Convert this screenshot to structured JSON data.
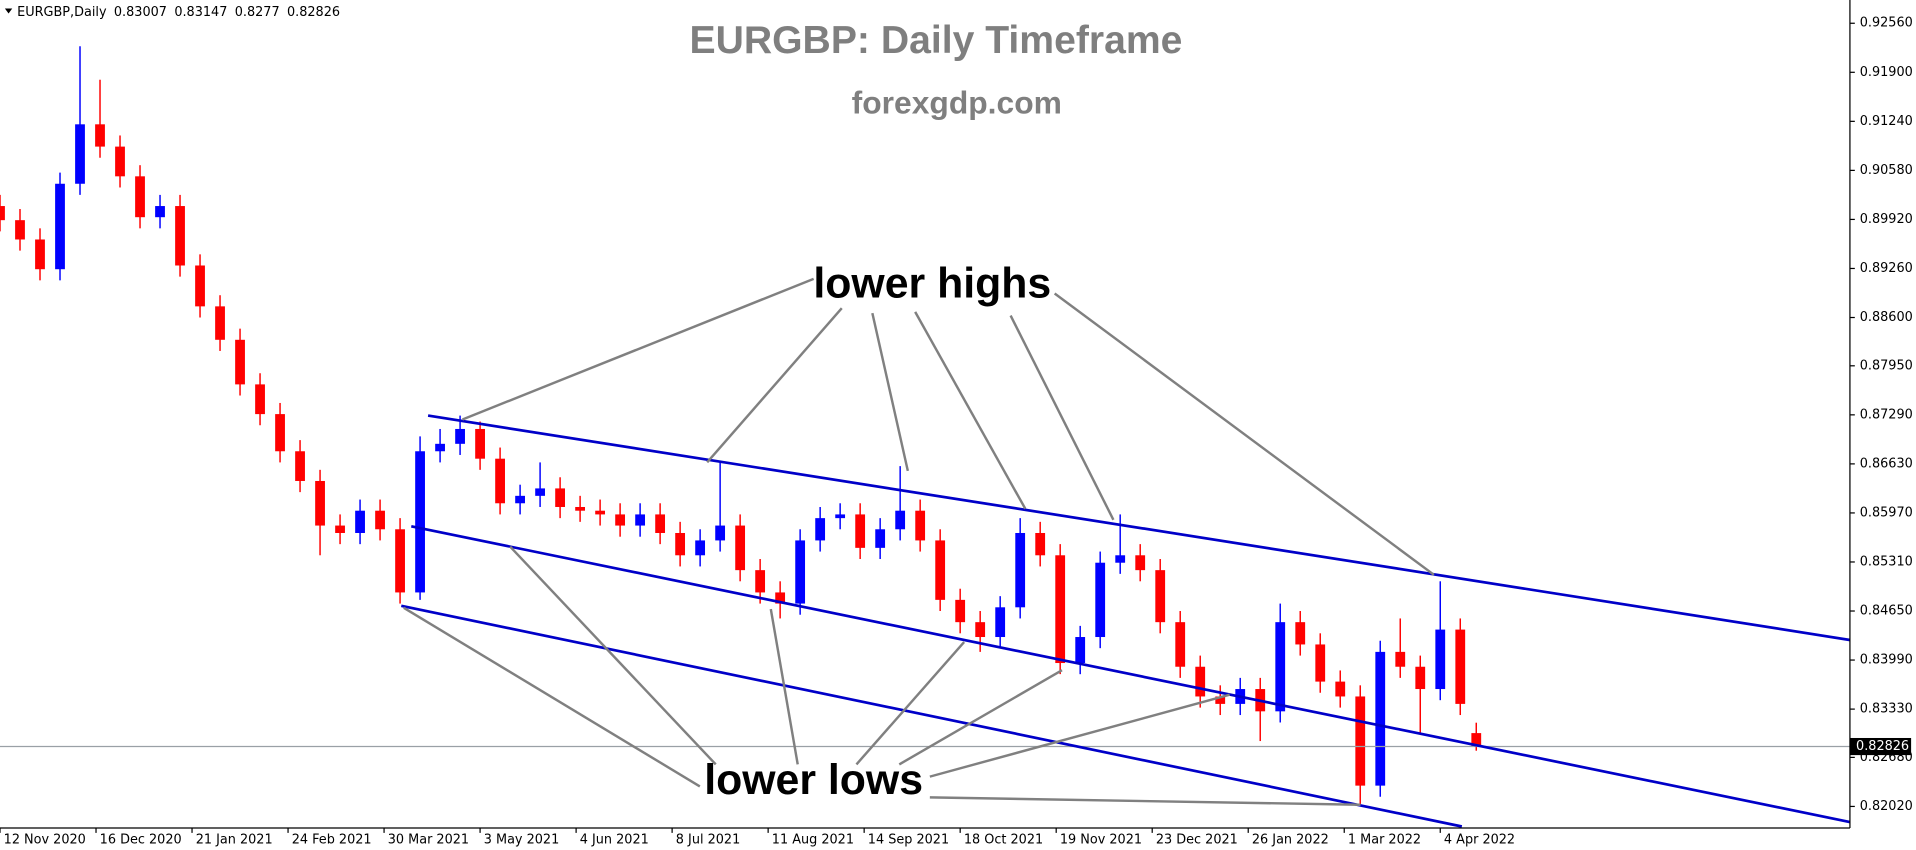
{
  "chart_data": {
    "type": "candlestick",
    "symbol": "EURGBP,Daily",
    "title": "EURGBP: Daily Timeframe",
    "subtitle": "forexgdp.com",
    "annotations": [
      "lower highs",
      "lower lows"
    ],
    "up_color": "#0000ff",
    "down_color": "#ff0000",
    "channel_color": "#0000c8",
    "xlim": [
      0,
      462.4
    ],
    "ylim": [
      0.8173,
      0.92873
    ],
    "xticks": [
      {
        "value": 0,
        "label": "12 Nov 2020"
      },
      {
        "value": 24,
        "label": "16 Dec 2020"
      },
      {
        "value": 48,
        "label": "21 Jan 2021"
      },
      {
        "value": 72,
        "label": "24 Feb 2021"
      },
      {
        "value": 96,
        "label": "30 Mar 2021"
      },
      {
        "value": 120,
        "label": "3 May 2021"
      },
      {
        "value": 144,
        "label": "4 Jun 2021"
      },
      {
        "value": 168,
        "label": "8 Jul 2021"
      },
      {
        "value": 192,
        "label": "11 Aug 2021"
      },
      {
        "value": 216,
        "label": "14 Sep 2021"
      },
      {
        "value": 240,
        "label": "18 Oct 2021"
      },
      {
        "value": 264,
        "label": "19 Nov 2021"
      },
      {
        "value": 288,
        "label": "23 Dec 2021"
      },
      {
        "value": 312,
        "label": "26 Jan 2022"
      },
      {
        "value": 336,
        "label": "1 Mar 2022"
      },
      {
        "value": 360,
        "label": "4 Apr 2022"
      }
    ],
    "yticks": [
      {
        "value": 0.9256,
        "label": "0.92560"
      },
      {
        "value": 0.919,
        "label": "0.91900"
      },
      {
        "value": 0.9124,
        "label": "0.91240"
      },
      {
        "value": 0.9058,
        "label": "0.90580"
      },
      {
        "value": 0.8992,
        "label": "0.89920"
      },
      {
        "value": 0.8926,
        "label": "0.89260"
      },
      {
        "value": 0.886,
        "label": "0.88600"
      },
      {
        "value": 0.8795,
        "label": "0.87950"
      },
      {
        "value": 0.8729,
        "label": "0.87290"
      },
      {
        "value": 0.8663,
        "label": "0.86630"
      },
      {
        "value": 0.8597,
        "label": "0.85970"
      },
      {
        "value": 0.8531,
        "label": "0.85310"
      },
      {
        "value": 0.8465,
        "label": "0.84650"
      },
      {
        "value": 0.8399,
        "label": "0.83990"
      },
      {
        "value": 0.8333,
        "label": "0.83330"
      },
      {
        "value": 0.8268,
        "label": "0.82680"
      },
      {
        "value": 0.8202,
        "label": "0.82020"
      }
    ],
    "x": [
      0,
      5,
      10,
      15,
      20,
      25,
      30,
      35,
      40,
      45,
      50,
      55,
      60,
      65,
      70,
      75,
      80,
      85,
      90,
      95,
      100,
      105,
      110,
      115,
      120,
      125,
      130,
      135,
      140,
      145,
      150,
      155,
      160,
      165,
      170,
      175,
      180,
      185,
      190,
      195,
      200,
      205,
      210,
      215,
      220,
      225,
      230,
      235,
      240,
      245,
      250,
      255,
      260,
      265,
      270,
      275,
      280,
      285,
      290,
      295,
      300,
      305,
      310,
      315,
      320,
      325,
      330,
      335,
      340,
      345,
      350,
      355,
      360,
      365,
      369
    ],
    "open": [
      0.901,
      0.8991,
      0.8965,
      0.8925,
      0.904,
      0.912,
      0.909,
      0.905,
      0.8995,
      0.901,
      0.893,
      0.8875,
      0.883,
      0.877,
      0.873,
      0.868,
      0.864,
      0.858,
      0.857,
      0.86,
      0.8575,
      0.849,
      0.868,
      0.869,
      0.871,
      0.867,
      0.861,
      0.862,
      0.863,
      0.8605,
      0.86,
      0.8595,
      0.858,
      0.8595,
      0.857,
      0.854,
      0.856,
      0.858,
      0.852,
      0.849,
      0.8475,
      0.856,
      0.859,
      0.8595,
      0.855,
      0.8575,
      0.86,
      0.856,
      0.848,
      0.845,
      0.843,
      0.847,
      0.857,
      0.854,
      0.8395,
      0.843,
      0.853,
      0.854,
      0.852,
      0.845,
      0.839,
      0.835,
      0.834,
      0.836,
      0.833,
      0.845,
      0.842,
      0.837,
      0.835,
      0.823,
      0.841,
      0.839,
      0.836,
      0.844,
      0.83007
    ],
    "high": [
      0.9025,
      0.9006,
      0.898,
      0.9055,
      0.9225,
      0.918,
      0.9105,
      0.9065,
      0.9025,
      0.9025,
      0.8945,
      0.889,
      0.8845,
      0.8785,
      0.8745,
      0.8695,
      0.8655,
      0.8595,
      0.8615,
      0.8615,
      0.859,
      0.87,
      0.871,
      0.8728,
      0.872,
      0.8685,
      0.8635,
      0.8665,
      0.8645,
      0.862,
      0.8615,
      0.861,
      0.861,
      0.861,
      0.8585,
      0.8575,
      0.8665,
      0.8595,
      0.8535,
      0.8505,
      0.8575,
      0.8605,
      0.861,
      0.861,
      0.859,
      0.866,
      0.8615,
      0.8575,
      0.8495,
      0.8465,
      0.8485,
      0.859,
      0.8585,
      0.8555,
      0.8445,
      0.8545,
      0.8595,
      0.8555,
      0.8535,
      0.8465,
      0.8405,
      0.8365,
      0.8375,
      0.8375,
      0.8475,
      0.8465,
      0.8435,
      0.8385,
      0.8365,
      0.8425,
      0.8455,
      0.8405,
      0.8505,
      0.8455,
      0.83147
    ],
    "low": [
      0.8976,
      0.895,
      0.891,
      0.891,
      0.9025,
      0.9075,
      0.9035,
      0.898,
      0.898,
      0.8915,
      0.886,
      0.8815,
      0.8755,
      0.8715,
      0.8665,
      0.8625,
      0.854,
      0.8555,
      0.8555,
      0.856,
      0.8475,
      0.848,
      0.8665,
      0.8675,
      0.8655,
      0.8595,
      0.8595,
      0.8605,
      0.859,
      0.8585,
      0.858,
      0.8565,
      0.8565,
      0.8555,
      0.8525,
      0.8525,
      0.8545,
      0.8505,
      0.8475,
      0.8455,
      0.846,
      0.8545,
      0.8575,
      0.8535,
      0.8535,
      0.856,
      0.8545,
      0.8465,
      0.8435,
      0.841,
      0.8415,
      0.8455,
      0.8525,
      0.838,
      0.838,
      0.8415,
      0.8515,
      0.8505,
      0.8435,
      0.8375,
      0.8335,
      0.8325,
      0.8325,
      0.829,
      0.8315,
      0.8405,
      0.8355,
      0.8335,
      0.8205,
      0.8215,
      0.8375,
      0.83,
      0.8345,
      0.8325,
      0.8277
    ],
    "close": [
      0.8991,
      0.8965,
      0.8925,
      0.904,
      0.912,
      0.909,
      0.905,
      0.8995,
      0.901,
      0.893,
      0.8875,
      0.883,
      0.877,
      0.873,
      0.868,
      0.864,
      0.858,
      0.857,
      0.86,
      0.8575,
      0.849,
      0.868,
      0.869,
      0.871,
      0.867,
      0.861,
      0.862,
      0.863,
      0.8605,
      0.86,
      0.8595,
      0.858,
      0.8595,
      0.857,
      0.854,
      0.856,
      0.858,
      0.852,
      0.849,
      0.8475,
      0.856,
      0.859,
      0.8595,
      0.855,
      0.8575,
      0.86,
      0.856,
      0.848,
      0.845,
      0.843,
      0.847,
      0.857,
      0.854,
      0.8395,
      0.843,
      0.853,
      0.854,
      0.852,
      0.845,
      0.839,
      0.835,
      0.834,
      0.836,
      0.833,
      0.845,
      0.842,
      0.837,
      0.835,
      0.823,
      0.841,
      0.839,
      0.836,
      0.844,
      0.834,
      0.82826
    ],
    "channel_lines": [
      {
        "x": [
          107,
          462.4
        ],
        "y": [
          0.8728,
          0.8426
        ]
      },
      {
        "x": [
          102.8,
          462.4
        ],
        "y": [
          0.8579,
          0.8181
        ]
      },
      {
        "x": [
          100.3,
          365.4
        ],
        "y": [
          0.8472,
          0.8175
        ]
      }
    ]
  }
}
